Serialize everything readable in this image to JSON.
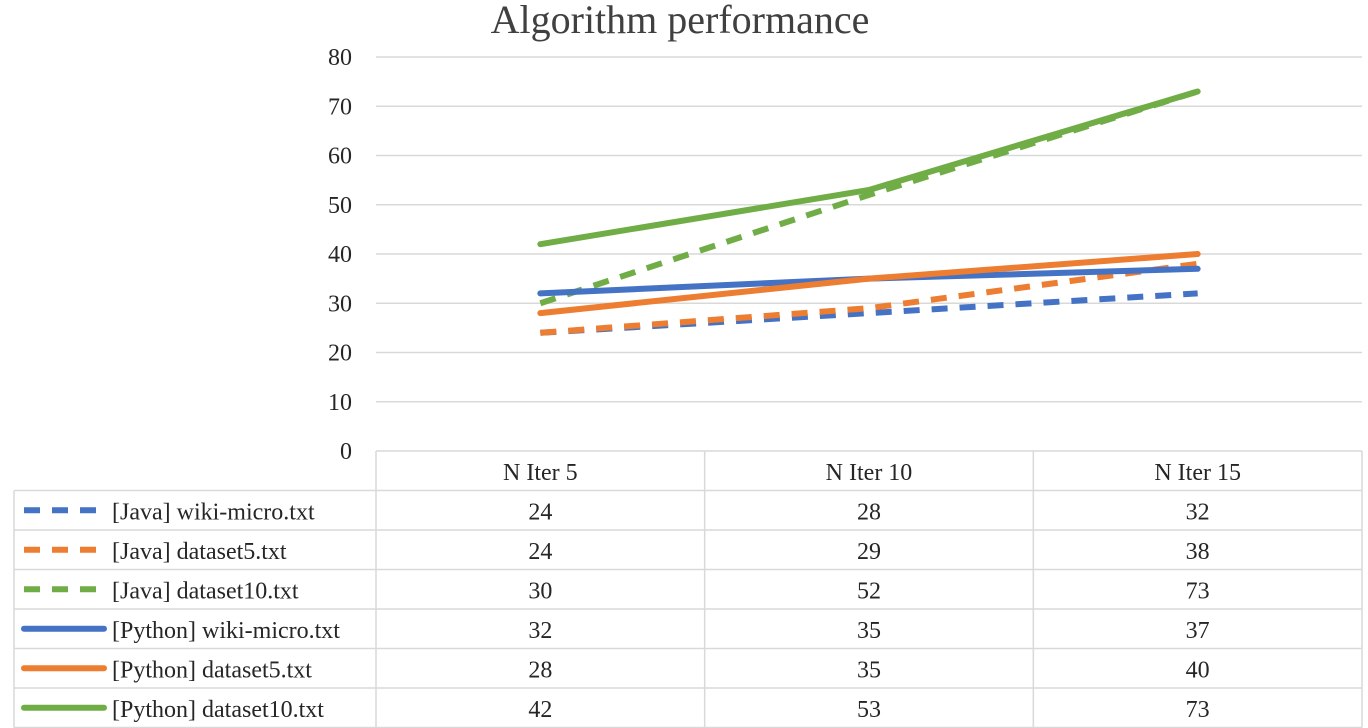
{
  "chart_data": {
    "type": "line",
    "title": "Algorithm performance",
    "xlabel": "",
    "ylabel": "",
    "categories": [
      "N Iter 5",
      "N Iter 10",
      "N Iter 15"
    ],
    "ylim": [
      0,
      80
    ],
    "yticks": [
      0,
      10,
      20,
      30,
      40,
      50,
      60,
      70,
      80
    ],
    "grid": true,
    "legend": "data-table-below",
    "series": [
      {
        "name": "[Java] wiki-micro.txt",
        "values": [
          24,
          28,
          32
        ],
        "color": "#4472c4",
        "dashed": true
      },
      {
        "name": "[Java] dataset5.txt",
        "values": [
          24,
          29,
          38
        ],
        "color": "#ed7d31",
        "dashed": true
      },
      {
        "name": "[Java] dataset10.txt",
        "values": [
          30,
          52,
          73
        ],
        "color": "#70ad47",
        "dashed": true
      },
      {
        "name": "[Python] wiki-micro.txt",
        "values": [
          32,
          35,
          37
        ],
        "color": "#4472c4",
        "dashed": false
      },
      {
        "name": "[Python] dataset5.txt",
        "values": [
          28,
          35,
          40
        ],
        "color": "#ed7d31",
        "dashed": false
      },
      {
        "name": "[Python] dataset10.txt",
        "values": [
          42,
          53,
          73
        ],
        "color": "#70ad47",
        "dashed": false
      }
    ]
  }
}
